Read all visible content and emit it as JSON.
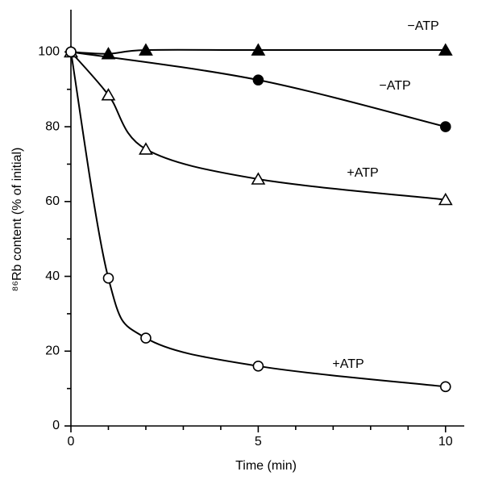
{
  "chart_data": {
    "type": "line",
    "x_label": "Time (min)",
    "y_label": "⁸⁶Rb content (% of initial)",
    "xlim": [
      0,
      10.5
    ],
    "ylim": [
      0,
      110
    ],
    "xticks": [
      0,
      5,
      10
    ],
    "yticks": [
      0,
      20,
      40,
      60,
      80,
      100
    ],
    "xminor_ticks": [
      1,
      2,
      3,
      4,
      6,
      7,
      8,
      9
    ],
    "yminor_ticks": [
      10,
      30,
      50,
      70,
      90
    ],
    "grid": false,
    "series": [
      {
        "name": "−ATP",
        "color": "#000",
        "marker": "triangle",
        "filled": true,
        "x": [
          0,
          1,
          2,
          5,
          10
        ],
        "values": [
          100,
          99.5,
          100.5,
          100.5,
          100.5
        ]
      },
      {
        "name": "−ATP",
        "color": "#000",
        "marker": "circle",
        "filled": true,
        "x": [
          0,
          5,
          10
        ],
        "values": [
          100,
          92.5,
          80
        ]
      },
      {
        "name": "+ATP",
        "color": "#000",
        "marker": "triangle",
        "filled": false,
        "x": [
          0,
          1,
          2,
          5,
          10
        ],
        "values": [
          100,
          88.5,
          74,
          66,
          60.5
        ]
      },
      {
        "name": "+ATP",
        "color": "#000",
        "marker": "circle",
        "filled": false,
        "x": [
          0,
          1,
          2,
          5,
          10
        ],
        "values": [
          100,
          39.5,
          23.5,
          16,
          10.5
        ]
      }
    ]
  }
}
